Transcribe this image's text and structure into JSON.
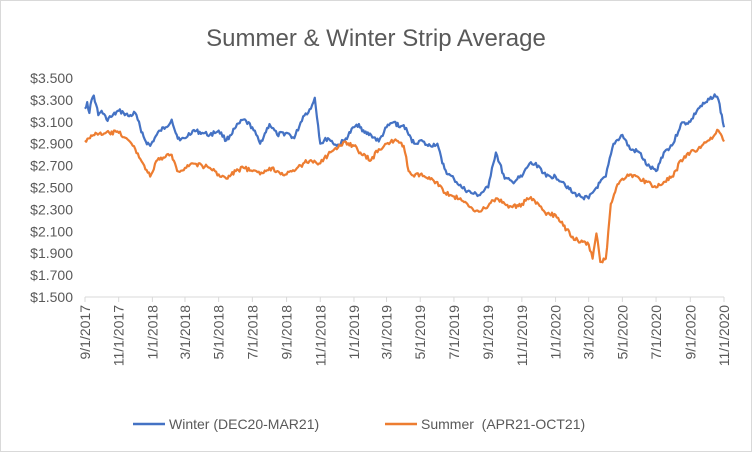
{
  "chart_data": {
    "type": "line",
    "title": "Summer & Winter Strip Average",
    "xlabel": "",
    "ylabel": "",
    "x_range": [
      "2017-09-01",
      "2020-11-01"
    ],
    "ylim": [
      1.5,
      3.5
    ],
    "y_ticks": [
      "$3.500",
      "$3.300",
      "$3.100",
      "$2.900",
      "$2.700",
      "$2.500",
      "$2.300",
      "$2.100",
      "$1.900",
      "$1.700",
      "$1.500"
    ],
    "x_ticks": [
      "9/1/2017",
      "11/1/2017",
      "1/1/2018",
      "3/1/2018",
      "5/1/2018",
      "7/1/2018",
      "9/1/2018",
      "11/1/2018",
      "1/1/2019",
      "3/1/2019",
      "5/1/2019",
      "7/1/2019",
      "9/1/2019",
      "11/1/2019",
      "1/1/2020",
      "3/1/2020",
      "5/1/2020",
      "7/1/2020",
      "9/1/2020",
      "11/1/2020"
    ],
    "grid": false,
    "legend_position": "bottom",
    "series": [
      {
        "name": "Winter (DEC20-MAR21)",
        "color": "#4472C4",
        "points": [
          [
            "2017-09-01",
            3.22
          ],
          [
            "2017-09-05",
            3.28
          ],
          [
            "2017-09-09",
            3.18
          ],
          [
            "2017-09-13",
            3.3
          ],
          [
            "2017-09-17",
            3.34
          ],
          [
            "2017-09-21",
            3.26
          ],
          [
            "2017-09-25",
            3.16
          ],
          [
            "2017-10-01",
            3.2
          ],
          [
            "2017-10-10",
            3.12
          ],
          [
            "2017-10-20",
            3.15
          ],
          [
            "2017-11-01",
            3.2
          ],
          [
            "2017-11-10",
            3.18
          ],
          [
            "2017-11-20",
            3.15
          ],
          [
            "2017-12-01",
            3.18
          ],
          [
            "2017-12-10",
            3.05
          ],
          [
            "2017-12-20",
            2.92
          ],
          [
            "2017-12-28",
            2.88
          ],
          [
            "2018-01-05",
            2.95
          ],
          [
            "2018-01-15",
            3.02
          ],
          [
            "2018-01-25",
            3.05
          ],
          [
            "2018-02-05",
            3.12
          ],
          [
            "2018-02-12",
            3.0
          ],
          [
            "2018-02-20",
            2.93
          ],
          [
            "2018-03-01",
            2.95
          ],
          [
            "2018-03-15",
            3.02
          ],
          [
            "2018-04-01",
            3.0
          ],
          [
            "2018-04-15",
            2.98
          ],
          [
            "2018-05-01",
            3.02
          ],
          [
            "2018-05-15",
            2.93
          ],
          [
            "2018-06-01",
            3.05
          ],
          [
            "2018-06-15",
            3.12
          ],
          [
            "2018-07-01",
            3.05
          ],
          [
            "2018-07-15",
            2.9
          ],
          [
            "2018-08-01",
            3.08
          ],
          [
            "2018-08-15",
            2.98
          ],
          [
            "2018-09-01",
            3.0
          ],
          [
            "2018-09-15",
            2.95
          ],
          [
            "2018-10-01",
            3.15
          ],
          [
            "2018-10-15",
            3.22
          ],
          [
            "2018-10-22",
            3.32
          ],
          [
            "2018-11-01",
            2.9
          ],
          [
            "2018-11-15",
            2.95
          ],
          [
            "2018-12-01",
            2.88
          ],
          [
            "2018-12-15",
            2.93
          ],
          [
            "2019-01-01",
            3.05
          ],
          [
            "2019-01-10",
            3.08
          ],
          [
            "2019-01-20",
            3.0
          ],
          [
            "2019-02-01",
            2.98
          ],
          [
            "2019-02-15",
            2.92
          ],
          [
            "2019-03-01",
            3.05
          ],
          [
            "2019-03-15",
            3.1
          ],
          [
            "2019-03-25",
            3.05
          ],
          [
            "2019-04-01",
            3.07
          ],
          [
            "2019-04-10",
            2.98
          ],
          [
            "2019-04-20",
            2.9
          ],
          [
            "2019-05-01",
            2.93
          ],
          [
            "2019-05-15",
            2.88
          ],
          [
            "2019-06-01",
            2.9
          ],
          [
            "2019-06-10",
            2.72
          ],
          [
            "2019-06-20",
            2.62
          ],
          [
            "2019-07-01",
            2.58
          ],
          [
            "2019-07-15",
            2.5
          ],
          [
            "2019-08-01",
            2.45
          ],
          [
            "2019-08-15",
            2.43
          ],
          [
            "2019-09-01",
            2.5
          ],
          [
            "2019-09-08",
            2.68
          ],
          [
            "2019-09-15",
            2.82
          ],
          [
            "2019-10-01",
            2.58
          ],
          [
            "2019-10-15",
            2.55
          ],
          [
            "2019-11-01",
            2.6
          ],
          [
            "2019-11-15",
            2.72
          ],
          [
            "2019-12-01",
            2.7
          ],
          [
            "2019-12-15",
            2.6
          ],
          [
            "2020-01-01",
            2.6
          ],
          [
            "2020-01-15",
            2.55
          ],
          [
            "2020-02-01",
            2.45
          ],
          [
            "2020-02-15",
            2.42
          ],
          [
            "2020-03-01",
            2.4
          ],
          [
            "2020-03-15",
            2.5
          ],
          [
            "2020-04-01",
            2.6
          ],
          [
            "2020-04-15",
            2.9
          ],
          [
            "2020-05-01",
            2.98
          ],
          [
            "2020-05-15",
            2.85
          ],
          [
            "2020-06-01",
            2.82
          ],
          [
            "2020-06-15",
            2.7
          ],
          [
            "2020-07-01",
            2.65
          ],
          [
            "2020-07-15",
            2.82
          ],
          [
            "2020-08-01",
            2.9
          ],
          [
            "2020-08-15",
            3.08
          ],
          [
            "2020-09-01",
            3.1
          ],
          [
            "2020-09-15",
            3.22
          ],
          [
            "2020-10-01",
            3.28
          ],
          [
            "2020-10-15",
            3.35
          ],
          [
            "2020-10-22",
            3.3
          ],
          [
            "2020-11-01",
            3.05
          ]
        ]
      },
      {
        "name": "Summer  (APR21-OCT21)",
        "color": "#ED7D31",
        "points": [
          [
            "2017-09-01",
            2.93
          ],
          [
            "2017-09-10",
            2.95
          ],
          [
            "2017-09-20",
            3.0
          ],
          [
            "2017-10-01",
            2.98
          ],
          [
            "2017-10-15",
            3.0
          ],
          [
            "2017-11-01",
            3.0
          ],
          [
            "2017-11-15",
            2.95
          ],
          [
            "2017-12-01",
            2.85
          ],
          [
            "2017-12-15",
            2.72
          ],
          [
            "2017-12-28",
            2.6
          ],
          [
            "2018-01-10",
            2.75
          ],
          [
            "2018-01-25",
            2.78
          ],
          [
            "2018-02-05",
            2.8
          ],
          [
            "2018-02-15",
            2.65
          ],
          [
            "2018-03-01",
            2.68
          ],
          [
            "2018-03-15",
            2.72
          ],
          [
            "2018-04-01",
            2.7
          ],
          [
            "2018-04-15",
            2.68
          ],
          [
            "2018-05-01",
            2.62
          ],
          [
            "2018-05-15",
            2.58
          ],
          [
            "2018-06-01",
            2.65
          ],
          [
            "2018-06-15",
            2.68
          ],
          [
            "2018-07-01",
            2.65
          ],
          [
            "2018-07-15",
            2.62
          ],
          [
            "2018-08-01",
            2.68
          ],
          [
            "2018-08-15",
            2.65
          ],
          [
            "2018-09-01",
            2.62
          ],
          [
            "2018-09-15",
            2.65
          ],
          [
            "2018-10-01",
            2.72
          ],
          [
            "2018-10-15",
            2.75
          ],
          [
            "2018-11-01",
            2.72
          ],
          [
            "2018-11-15",
            2.8
          ],
          [
            "2018-12-01",
            2.85
          ],
          [
            "2018-12-15",
            2.92
          ],
          [
            "2019-01-01",
            2.88
          ],
          [
            "2019-01-15",
            2.8
          ],
          [
            "2019-02-01",
            2.75
          ],
          [
            "2019-02-15",
            2.85
          ],
          [
            "2019-03-01",
            2.9
          ],
          [
            "2019-03-15",
            2.93
          ],
          [
            "2019-04-01",
            2.88
          ],
          [
            "2019-04-10",
            2.65
          ],
          [
            "2019-04-20",
            2.6
          ],
          [
            "2019-05-01",
            2.62
          ],
          [
            "2019-05-15",
            2.58
          ],
          [
            "2019-06-01",
            2.55
          ],
          [
            "2019-06-15",
            2.45
          ],
          [
            "2019-07-01",
            2.42
          ],
          [
            "2019-07-15",
            2.38
          ],
          [
            "2019-08-01",
            2.32
          ],
          [
            "2019-08-15",
            2.28
          ],
          [
            "2019-09-01",
            2.33
          ],
          [
            "2019-09-15",
            2.4
          ],
          [
            "2019-10-01",
            2.35
          ],
          [
            "2019-10-15",
            2.32
          ],
          [
            "2019-11-01",
            2.35
          ],
          [
            "2019-11-15",
            2.4
          ],
          [
            "2019-12-01",
            2.35
          ],
          [
            "2019-12-15",
            2.25
          ],
          [
            "2020-01-01",
            2.25
          ],
          [
            "2020-01-15",
            2.15
          ],
          [
            "2020-02-01",
            2.05
          ],
          [
            "2020-02-15",
            2.0
          ],
          [
            "2020-03-01",
            1.98
          ],
          [
            "2020-03-08",
            1.85
          ],
          [
            "2020-03-15",
            2.08
          ],
          [
            "2020-03-22",
            1.82
          ],
          [
            "2020-04-01",
            1.85
          ],
          [
            "2020-04-10",
            2.35
          ],
          [
            "2020-04-20",
            2.5
          ],
          [
            "2020-05-01",
            2.58
          ],
          [
            "2020-05-15",
            2.62
          ],
          [
            "2020-06-01",
            2.58
          ],
          [
            "2020-06-15",
            2.55
          ],
          [
            "2020-07-01",
            2.5
          ],
          [
            "2020-07-15",
            2.55
          ],
          [
            "2020-08-01",
            2.6
          ],
          [
            "2020-08-15",
            2.75
          ],
          [
            "2020-09-01",
            2.82
          ],
          [
            "2020-09-15",
            2.85
          ],
          [
            "2020-10-01",
            2.92
          ],
          [
            "2020-10-15",
            2.98
          ],
          [
            "2020-10-22",
            3.02
          ],
          [
            "2020-11-01",
            2.92
          ]
        ]
      }
    ]
  }
}
